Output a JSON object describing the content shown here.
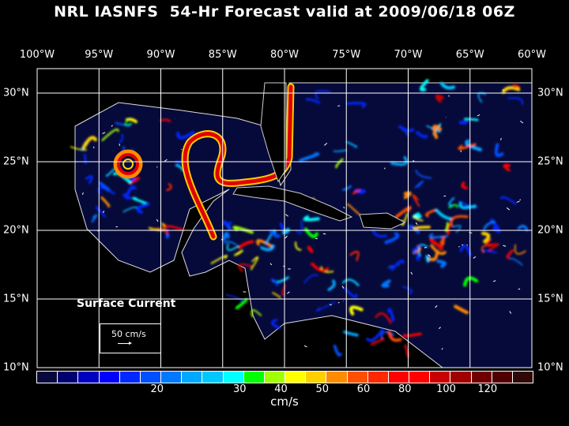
{
  "title": "NRL IASNFS  54-Hr Forecast valid at 2009/06/18 06Z",
  "lon_labels": [
    "100°W",
    "95°W",
    "90°W",
    "85°W",
    "80°W",
    "75°W",
    "70°W",
    "65°W",
    "60°W"
  ],
  "lat_labels": [
    "30°N",
    "25°N",
    "20°N",
    "15°N",
    "10°N"
  ],
  "legend": {
    "label": "Surface Current",
    "reference_vector": "50 cm/s"
  },
  "colorbar": {
    "colors": [
      "#08083c",
      "#000070",
      "#0000c0",
      "#0000ff",
      "#0028ff",
      "#0050ff",
      "#0078ff",
      "#00a8ff",
      "#00c8ff",
      "#00ffff",
      "#00ff00",
      "#a0ff00",
      "#ffff00",
      "#ffd000",
      "#ff8c00",
      "#ff5000",
      "#ff2800",
      "#ff0000",
      "#ff0000",
      "#c80000",
      "#a00000",
      "#700000",
      "#500000",
      "#300808"
    ],
    "ticks": [
      "20",
      "30",
      "40",
      "50",
      "60",
      "80",
      "100",
      "120"
    ],
    "unit": "cm/s"
  }
}
